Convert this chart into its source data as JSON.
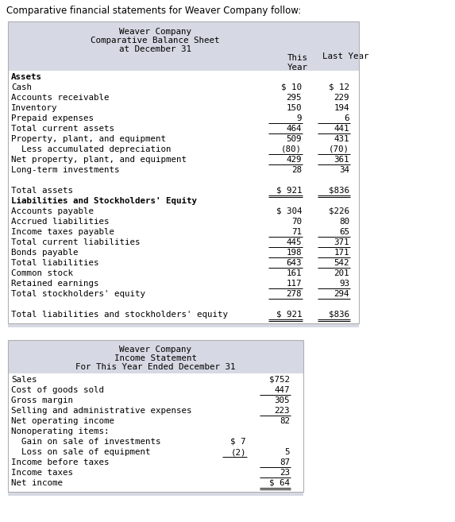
{
  "intro_text": "Comparative financial statements for Weaver Company follow:",
  "bs_title1": "Weaver Company",
  "bs_title2": "Comparative Balance Sheet",
  "bs_title3": "at December 31",
  "bs_rows": [
    {
      "label": "Assets",
      "bold": true,
      "ty": null,
      "ly": null
    },
    {
      "label": "Cash",
      "bold": false,
      "ty": "$ 10",
      "ly": "$ 12"
    },
    {
      "label": "Accounts receivable",
      "bold": false,
      "ty": "295",
      "ly": "229"
    },
    {
      "label": "Inventory",
      "bold": false,
      "ty": "150",
      "ly": "194"
    },
    {
      "label": "Prepaid expenses",
      "bold": false,
      "ty": "9",
      "ly": "6",
      "ul_ty": true,
      "ul_ly": true
    },
    {
      "label": "Total current assets",
      "bold": false,
      "ty": "464",
      "ly": "441",
      "ul_ty": true,
      "ul_ly": true
    },
    {
      "label": "Property, plant, and equipment",
      "bold": false,
      "ty": "509",
      "ly": "431"
    },
    {
      "label": "  Less accumulated depreciation",
      "bold": false,
      "ty": "(80)",
      "ly": "(70)",
      "ul_ty": true,
      "ul_ly": true
    },
    {
      "label": "Net property, plant, and equipment",
      "bold": false,
      "ty": "429",
      "ly": "361",
      "ul_ty": true,
      "ul_ly": true
    },
    {
      "label": "Long-term investments",
      "bold": false,
      "ty": "28",
      "ly": "34"
    },
    {
      "label": " ",
      "bold": false,
      "ty": null,
      "ly": null
    },
    {
      "label": "Total assets",
      "bold": false,
      "ty": "$ 921",
      "ly": "$836",
      "dul_ty": true,
      "dul_ly": true
    },
    {
      "label": "Liabilities and Stockholders' Equity",
      "bold": true,
      "ty": null,
      "ly": null
    },
    {
      "label": "Accounts payable",
      "bold": false,
      "ty": "$ 304",
      "ly": "$226"
    },
    {
      "label": "Accrued liabilities",
      "bold": false,
      "ty": "70",
      "ly": "80"
    },
    {
      "label": "Income taxes payable",
      "bold": false,
      "ty": "71",
      "ly": "65",
      "ul_ty": true,
      "ul_ly": true
    },
    {
      "label": "Total current liabilities",
      "bold": false,
      "ty": "445",
      "ly": "371",
      "ul_ty": true,
      "ul_ly": true
    },
    {
      "label": "Bonds payable",
      "bold": false,
      "ty": "198",
      "ly": "171",
      "ul_ty": true,
      "ul_ly": true
    },
    {
      "label": "Total liabilities",
      "bold": false,
      "ty": "643",
      "ly": "542",
      "ul_ty": true,
      "ul_ly": true
    },
    {
      "label": "Common stock",
      "bold": false,
      "ty": "161",
      "ly": "201"
    },
    {
      "label": "Retained earnings",
      "bold": false,
      "ty": "117",
      "ly": "93",
      "ul_ty": true,
      "ul_ly": true
    },
    {
      "label": "Total stockholders' equity",
      "bold": false,
      "ty": "278",
      "ly": "294",
      "ul_ty": true,
      "ul_ly": true
    },
    {
      "label": " ",
      "bold": false,
      "ty": null,
      "ly": null
    },
    {
      "label": "Total liabilities and stockholders' equity",
      "bold": false,
      "ty": "$ 921",
      "ly": "$836",
      "dul_ty": true,
      "dul_ly": true
    }
  ],
  "is_title1": "Weaver Company",
  "is_title2": "Income Statement",
  "is_title3": "For This Year Ended December 31",
  "is_rows": [
    {
      "label": "Sales",
      "c1": null,
      "c2": "$752",
      "ul_c2": false
    },
    {
      "label": "Cost of goods sold",
      "c1": null,
      "c2": "447",
      "ul_c2": true
    },
    {
      "label": "Gross margin",
      "c1": null,
      "c2": "305",
      "ul_c2": false
    },
    {
      "label": "Selling and administrative expenses",
      "c1": null,
      "c2": "223",
      "ul_c2": true
    },
    {
      "label": "Net operating income",
      "c1": null,
      "c2": "82",
      "ul_c2": false
    },
    {
      "label": "Nonoperating items:",
      "c1": null,
      "c2": null
    },
    {
      "label": "  Gain on sale of investments",
      "c1": "$ 7",
      "c2": null
    },
    {
      "label": "  Loss on sale of equipment",
      "c1": "(2)",
      "c2": "5",
      "ul_c1": true
    },
    {
      "label": "Income before taxes",
      "c1": null,
      "c2": "87",
      "ul_c2": true
    },
    {
      "label": "Income taxes",
      "c1": null,
      "c2": "23",
      "ul_c2": true
    },
    {
      "label": "Net income",
      "c1": null,
      "c2": "$ 64",
      "dul_c2": true
    }
  ],
  "bg_header": "#d6d9e3",
  "bg_white": "#ffffff",
  "bg_page": "#ffffff",
  "border_color": "#b0b0b0",
  "fs": 7.8
}
